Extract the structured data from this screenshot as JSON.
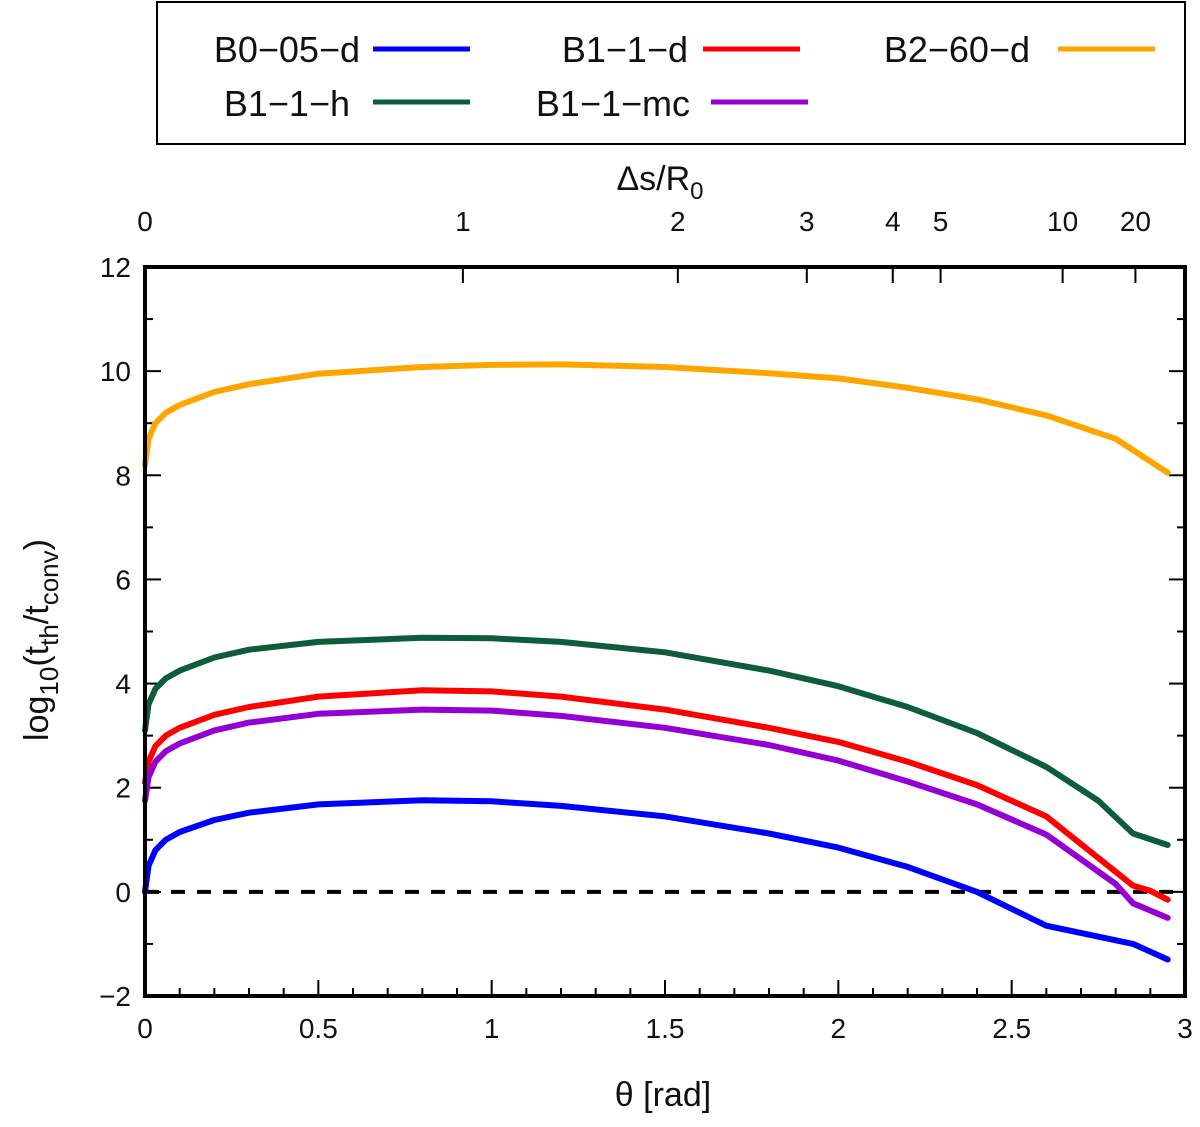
{
  "chart_data": {
    "type": "line",
    "xlabel": "θ [rad]",
    "ylabel": {
      "base": "log",
      "sub1": "10",
      "open": "(t",
      "sub2": "th",
      "mid": "/t",
      "sub3": "conv",
      "close": ")"
    },
    "top_xlabel": {
      "base": "Δs/R",
      "sub": "0"
    },
    "xlim": [
      0,
      3
    ],
    "ylim": [
      -2,
      12
    ],
    "x_ticks": [
      0,
      0.5,
      1,
      1.5,
      2,
      2.5,
      3
    ],
    "x_tick_labels": [
      "0",
      "0.5",
      "1",
      "1.5",
      "2",
      "2.5",
      "3"
    ],
    "y_ticks": [
      -2,
      0,
      2,
      4,
      6,
      8,
      10,
      12
    ],
    "y_tick_labels": [
      "−2",
      "0",
      "2",
      "4",
      "6",
      "8",
      "10",
      "12"
    ],
    "top_ticks": [
      {
        "theta": 0.0,
        "label": "0"
      },
      {
        "theta": 0.917,
        "label": "1"
      },
      {
        "theta": 1.537,
        "label": "2"
      },
      {
        "theta": 1.909,
        "label": "3"
      },
      {
        "theta": 2.157,
        "label": "4"
      },
      {
        "theta": 2.295,
        "label": "5"
      },
      {
        "theta": 2.647,
        "label": "10"
      },
      {
        "theta": 2.857,
        "label": "20"
      }
    ],
    "reference_line": {
      "y": 0,
      "style": "dashed"
    },
    "series": [
      {
        "name": "B0−05−d",
        "color": "#0000ff",
        "x": [
          0.0,
          0.01,
          0.03,
          0.06,
          0.1,
          0.2,
          0.3,
          0.5,
          0.8,
          1.0,
          1.2,
          1.5,
          1.8,
          2.0,
          2.2,
          2.4,
          2.6,
          2.85,
          2.95
        ],
        "y": [
          0.0,
          0.5,
          0.8,
          1.0,
          1.15,
          1.38,
          1.52,
          1.68,
          1.76,
          1.74,
          1.65,
          1.45,
          1.12,
          0.85,
          0.48,
          0.0,
          -0.65,
          -1.0,
          -1.3
        ]
      },
      {
        "name": "B1−1−d",
        "color": "#ff0000",
        "x": [
          0.0,
          0.01,
          0.03,
          0.06,
          0.1,
          0.2,
          0.3,
          0.5,
          0.8,
          1.0,
          1.2,
          1.5,
          1.8,
          2.0,
          2.2,
          2.4,
          2.6,
          2.85,
          2.9,
          2.95
        ],
        "y": [
          2.1,
          2.5,
          2.8,
          3.0,
          3.15,
          3.4,
          3.55,
          3.75,
          3.87,
          3.85,
          3.75,
          3.5,
          3.15,
          2.88,
          2.5,
          2.05,
          1.45,
          0.12,
          0.02,
          -0.15
        ]
      },
      {
        "name": "B2−60−d",
        "color": "#ffa500",
        "x": [
          0.0,
          0.01,
          0.03,
          0.06,
          0.1,
          0.2,
          0.3,
          0.5,
          0.8,
          1.0,
          1.2,
          1.5,
          1.8,
          2.0,
          2.2,
          2.4,
          2.6,
          2.8,
          2.95
        ],
        "y": [
          8.2,
          8.7,
          9.0,
          9.2,
          9.35,
          9.6,
          9.75,
          9.95,
          10.08,
          10.12,
          10.13,
          10.08,
          9.96,
          9.86,
          9.68,
          9.46,
          9.15,
          8.7,
          8.05
        ]
      },
      {
        "name": "B1−1−h",
        "color": "#0d5c3a",
        "x": [
          0.0,
          0.01,
          0.03,
          0.06,
          0.1,
          0.2,
          0.3,
          0.5,
          0.8,
          1.0,
          1.2,
          1.5,
          1.8,
          2.0,
          2.2,
          2.4,
          2.6,
          2.75,
          2.85,
          2.95
        ],
        "y": [
          3.1,
          3.6,
          3.9,
          4.1,
          4.25,
          4.5,
          4.65,
          4.8,
          4.88,
          4.87,
          4.8,
          4.6,
          4.25,
          3.95,
          3.55,
          3.05,
          2.4,
          1.75,
          1.12,
          0.9
        ]
      },
      {
        "name": "B1−1−mc",
        "color": "#9400d3",
        "x": [
          0.0,
          0.01,
          0.03,
          0.06,
          0.1,
          0.2,
          0.3,
          0.5,
          0.8,
          1.0,
          1.2,
          1.5,
          1.8,
          2.0,
          2.2,
          2.4,
          2.6,
          2.8,
          2.85,
          2.95
        ],
        "y": [
          1.75,
          2.2,
          2.5,
          2.7,
          2.85,
          3.1,
          3.25,
          3.42,
          3.5,
          3.48,
          3.38,
          3.15,
          2.82,
          2.52,
          2.12,
          1.68,
          1.1,
          0.15,
          -0.22,
          -0.5
        ]
      }
    ],
    "legend": {
      "position": "top",
      "rows": [
        [
          "B0−05−d",
          "B1−1−d",
          "B2−60−d"
        ],
        [
          "B1−1−h",
          "B1−1−mc"
        ]
      ]
    }
  }
}
